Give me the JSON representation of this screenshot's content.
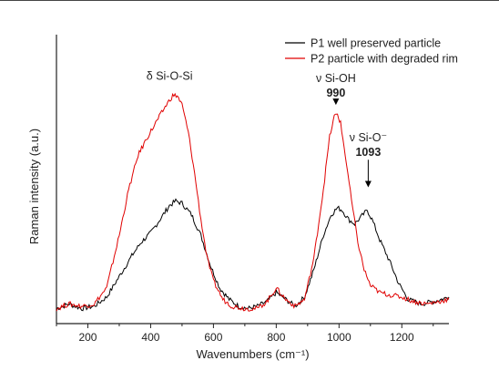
{
  "chart_data": {
    "type": "line",
    "xlabel": "Wavenumbers (cm⁻¹)",
    "ylabel": "Raman intensity (a.u.)",
    "xlim": [
      100,
      1350
    ],
    "ylim": [
      0,
      100
    ],
    "x_ticks": [
      200,
      400,
      600,
      800,
      1000,
      1200
    ],
    "y_ticks_labeled": false,
    "grid": false,
    "legend_position": "top-right",
    "series": [
      {
        "name": "P1 well preserved particle",
        "color": "#000000",
        "points": [
          [
            100,
            3
          ],
          [
            140,
            5
          ],
          [
            180,
            3
          ],
          [
            220,
            4
          ],
          [
            260,
            8
          ],
          [
            300,
            17
          ],
          [
            340,
            26
          ],
          [
            370,
            32
          ],
          [
            400,
            36
          ],
          [
            430,
            42
          ],
          [
            460,
            48
          ],
          [
            480,
            50
          ],
          [
            500,
            49
          ],
          [
            530,
            44
          ],
          [
            560,
            35
          ],
          [
            590,
            22
          ],
          [
            620,
            12
          ],
          [
            650,
            7
          ],
          [
            680,
            4
          ],
          [
            710,
            3
          ],
          [
            740,
            4
          ],
          [
            770,
            6
          ],
          [
            800,
            10
          ],
          [
            830,
            7
          ],
          [
            860,
            4
          ],
          [
            890,
            8
          ],
          [
            920,
            20
          ],
          [
            950,
            35
          ],
          [
            975,
            44
          ],
          [
            995,
            47
          ],
          [
            1010,
            46
          ],
          [
            1030,
            42
          ],
          [
            1050,
            40
          ],
          [
            1070,
            43
          ],
          [
            1090,
            46
          ],
          [
            1105,
            42
          ],
          [
            1130,
            33
          ],
          [
            1160,
            24
          ],
          [
            1190,
            14
          ],
          [
            1220,
            7
          ],
          [
            1260,
            5
          ],
          [
            1300,
            6
          ],
          [
            1350,
            8
          ]
        ]
      },
      {
        "name": "P2 particle with degraded rim",
        "color": "#e00000",
        "points": [
          [
            100,
            3
          ],
          [
            140,
            5
          ],
          [
            180,
            4
          ],
          [
            220,
            5
          ],
          [
            260,
            12
          ],
          [
            300,
            35
          ],
          [
            330,
            55
          ],
          [
            360,
            70
          ],
          [
            390,
            78
          ],
          [
            420,
            85
          ],
          [
            450,
            92
          ],
          [
            470,
            96
          ],
          [
            485,
            96
          ],
          [
            500,
            92
          ],
          [
            520,
            80
          ],
          [
            540,
            62
          ],
          [
            560,
            42
          ],
          [
            580,
            25
          ],
          [
            600,
            15
          ],
          [
            630,
            7
          ],
          [
            660,
            4
          ],
          [
            700,
            3
          ],
          [
            740,
            3
          ],
          [
            770,
            6
          ],
          [
            800,
            12
          ],
          [
            830,
            7
          ],
          [
            860,
            4
          ],
          [
            890,
            7
          ],
          [
            920,
            25
          ],
          [
            950,
            55
          ],
          [
            970,
            78
          ],
          [
            985,
            87
          ],
          [
            995,
            88
          ],
          [
            1005,
            84
          ],
          [
            1020,
            70
          ],
          [
            1040,
            50
          ],
          [
            1060,
            32
          ],
          [
            1080,
            20
          ],
          [
            1100,
            13
          ],
          [
            1130,
            10
          ],
          [
            1160,
            9
          ],
          [
            1200,
            8
          ],
          [
            1240,
            6
          ],
          [
            1280,
            5
          ],
          [
            1350,
            7
          ]
        ]
      }
    ],
    "annotations": [
      {
        "label": "δ Si-O-Si",
        "x": 460,
        "y": 103
      },
      {
        "label": "ν Si-OH",
        "value": "990",
        "x": 990,
        "y": 102,
        "arrow_to": 92
      },
      {
        "label": "ν Si-O⁻",
        "value": "1093",
        "x": 1093,
        "y": 76,
        "arrow_to": 56
      }
    ]
  }
}
